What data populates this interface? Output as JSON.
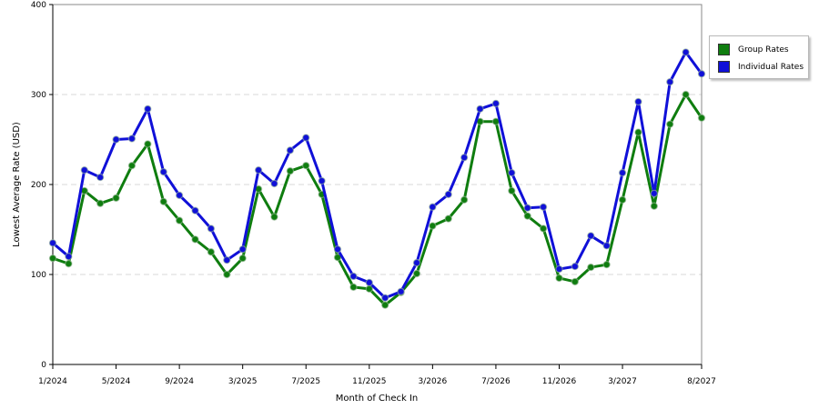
{
  "chart_data": {
    "type": "line",
    "xlabel": "Month of Check In",
    "ylabel": "Lowest Average Rate (USD)",
    "ylim": [
      0,
      400
    ],
    "yticks": [
      0,
      100,
      200,
      300,
      400
    ],
    "grid": "horizontal dashed",
    "legend_position": "right",
    "x_tick_labels": [
      {
        "index": 0,
        "label": "1/2024"
      },
      {
        "index": 4,
        "label": "5/2024"
      },
      {
        "index": 8,
        "label": "9/2024"
      },
      {
        "index": 12,
        "label": "3/2025"
      },
      {
        "index": 16,
        "label": "7/2025"
      },
      {
        "index": 20,
        "label": "11/2025"
      },
      {
        "index": 24,
        "label": "3/2026"
      },
      {
        "index": 28,
        "label": "7/2026"
      },
      {
        "index": 32,
        "label": "11/2026"
      },
      {
        "index": 36,
        "label": "3/2027"
      },
      {
        "index": 41,
        "label": "8/2027"
      }
    ],
    "series": [
      {
        "name": "Group Rates",
        "color": "#0f7d0f",
        "values": [
          118,
          112,
          193,
          179,
          185,
          221,
          245,
          181,
          160,
          139,
          125,
          100,
          118,
          195,
          164,
          215,
          221,
          189,
          119,
          86,
          84,
          66,
          80,
          101,
          154,
          162,
          183,
          270,
          270,
          193,
          165,
          151,
          96,
          92,
          108,
          111,
          183,
          258,
          176,
          267,
          300,
          274
        ]
      },
      {
        "name": "Individual Rates",
        "color": "#1010d8",
        "values": [
          135,
          120,
          216,
          208,
          250,
          251,
          284,
          214,
          188,
          171,
          151,
          116,
          128,
          216,
          201,
          238,
          252,
          204,
          128,
          98,
          91,
          74,
          81,
          113,
          175,
          189,
          230,
          284,
          290,
          213,
          174,
          175,
          106,
          109,
          143,
          132,
          213,
          292,
          190,
          314,
          347,
          323
        ]
      }
    ]
  }
}
